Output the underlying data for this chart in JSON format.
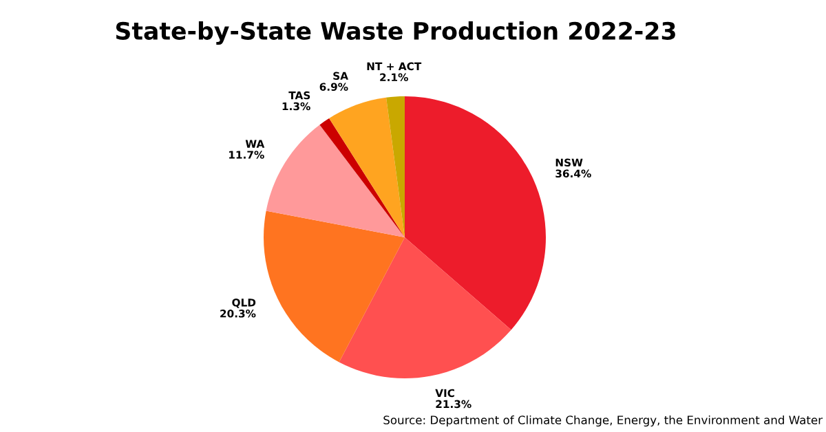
{
  "chart_data": {
    "type": "pie",
    "title": "State-by-State Waste Production 2022-23",
    "categories": [
      "NSW",
      "VIC",
      "QLD",
      "WA",
      "TAS",
      "SA",
      "NT + ACT"
    ],
    "values": [
      36.4,
      21.3,
      20.3,
      11.7,
      1.3,
      6.9,
      2.1
    ],
    "value_labels": [
      "36.4%",
      "21.3%",
      "20.3%",
      "11.7%",
      "1.3%",
      "6.9%",
      "2.1%"
    ],
    "colors": [
      "#ed1c2b",
      "#ff5050",
      "#ff7420",
      "#ff999a",
      "#cc0000",
      "#ffa420",
      "#c9a800"
    ],
    "annotations": [
      "Source: Department of Climate Change, Energy, the Environment and Water"
    ]
  }
}
